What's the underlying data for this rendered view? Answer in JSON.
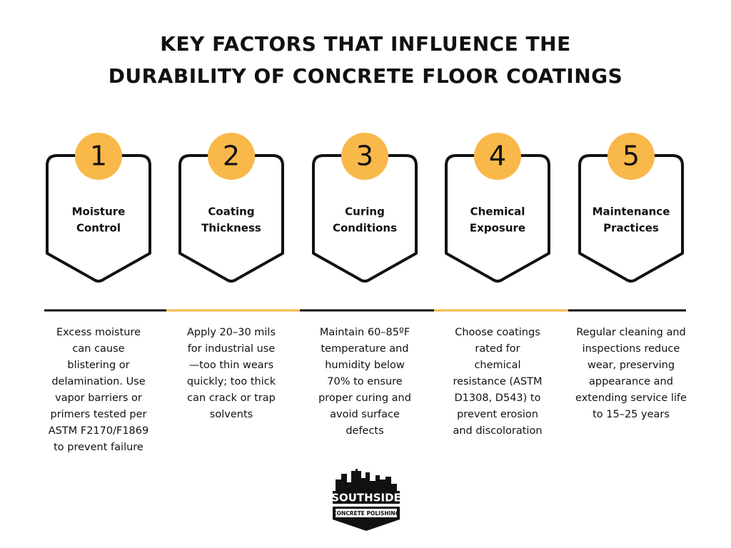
{
  "header": {
    "title_lines": [
      "KEY FACTORS THAT INFLUENCE THE",
      "DURABILITY OF CONCRETE FLOOR COATINGS"
    ]
  },
  "factors": [
    {
      "number": "1",
      "title_lines": [
        "Moisture",
        "Control"
      ],
      "description_lines": [
        "Excess moisture",
        "can cause",
        "blistering or",
        "delamination. Use",
        "vapor barriers or",
        "primers tested per",
        "ASTM F2170/F1869",
        "to prevent failure"
      ]
    },
    {
      "number": "2",
      "title_lines": [
        "Coating",
        "Thickness"
      ],
      "description_lines": [
        "Apply 20–30 mils",
        "for industrial use",
        "—too thin wears",
        "quickly; too thick",
        "can crack or trap",
        "solvents"
      ]
    },
    {
      "number": "3",
      "title_lines": [
        "Curing",
        "Conditions"
      ],
      "description_lines": [
        "Maintain 60–85ºF",
        "temperature and",
        "humidity below",
        "70% to ensure",
        "proper curing and",
        "avoid surface",
        "defects"
      ]
    },
    {
      "number": "4",
      "title_lines": [
        "Chemical",
        "Exposure"
      ],
      "description_lines": [
        "Choose coatings",
        "rated for",
        "chemical",
        "resistance (ASTM",
        "D1308, D543) to",
        "prevent erosion",
        "and discoloration"
      ]
    },
    {
      "number": "5",
      "title_lines": [
        "Maintenance",
        "Practices"
      ],
      "description_lines": [
        "Regular cleaning and",
        "inspections reduce",
        "wear, preserving",
        "appearance and",
        "extending service life",
        "to 15–25 years"
      ]
    }
  ],
  "logo": {
    "name": "SOUTHSIDE",
    "tagline": "CONCRETE POLISHING"
  }
}
